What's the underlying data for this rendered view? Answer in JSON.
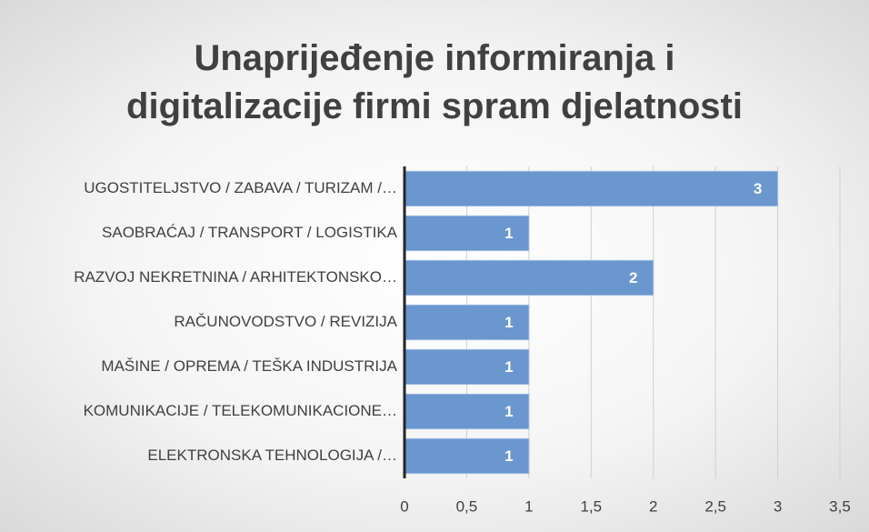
{
  "chart_data": {
    "type": "bar",
    "orientation": "horizontal",
    "title": "Unaprijeđenje informiranja i digitalizacije firmi spram djelatnosti",
    "categories": [
      "UGOSTITELJSTVO / ZABAVA / TURIZAM /…",
      "SAOBRAĆAJ / TRANSPORT / LOGISTIKA",
      "RAZVOJ NEKRETNINA / ARHITEKTONSKO…",
      "RAČUNOVODSTVO / REVIZIJA",
      "MAŠINE / OPREMA / TEŠKA INDUSTRIJA",
      "KOMUNIKACIJE / TELEKOMUNIKACIONE…",
      "ELEKTRONSKA TEHNOLOGIJA /…"
    ],
    "values": [
      3,
      1,
      2,
      1,
      1,
      1,
      1
    ],
    "color": "#6b97cf",
    "xlim": [
      0,
      3.5
    ],
    "xticks": [
      0,
      {
        "value": 0.5,
        "label": "0,5"
      },
      1,
      {
        "value": 1.5,
        "label": "1,5"
      },
      2,
      {
        "value": 2.5,
        "label": "2,5"
      },
      3,
      {
        "value": 3.5,
        "label": "3,5"
      }
    ],
    "grid": true
  }
}
